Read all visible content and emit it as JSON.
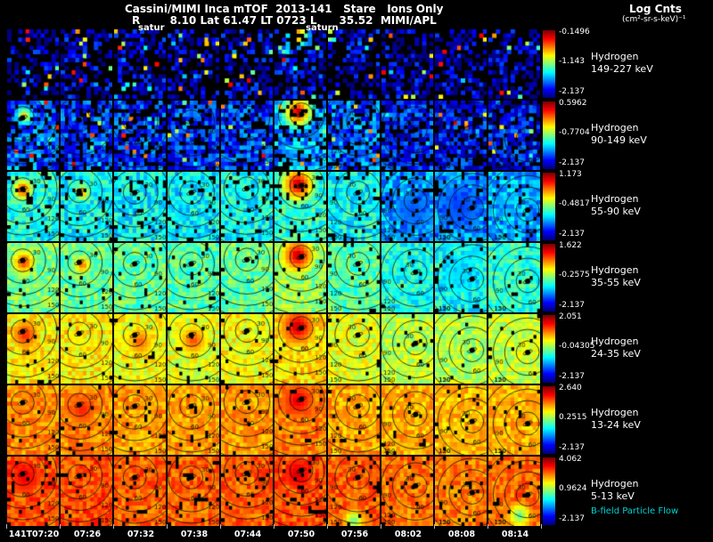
{
  "header": {
    "title": "Cassini/MIMI Inca mTOF  2013-141   Stare   Ions Only",
    "subtitle": "R        8.10 Lat 61.47 LT 0723 L      35.52  MIMI/APL"
  },
  "legend": {
    "title": "Log Cnts",
    "units": "(cm²-sr-s-keV)⁻¹"
  },
  "annotations": {
    "saturn_label_1": "satur",
    "saturn_label_2": "saturn",
    "bfield_label": "B-field Particle Flow"
  },
  "chart_data": {
    "type": "heatmap",
    "colormap": "jet",
    "title": "Cassini/MIMI Inca mTOF 2013-141 Stare Ions Only",
    "x_categories": [
      "141T07:20",
      "07:26",
      "07:32",
      "07:38",
      "07:44",
      "07:50",
      "07:56",
      "08:02",
      "08:08",
      "08:14"
    ],
    "contour_labels_deg": [
      30,
      60,
      90,
      120,
      150
    ],
    "rows": [
      {
        "species": "Hydrogen",
        "energy": "149-227 keV",
        "scale_max": "-0.1496",
        "scale_mid": "-1.143",
        "scale_min": "-2.137",
        "base": [
          0.05,
          0.05,
          0.05,
          0.05,
          0.05,
          0.09,
          0.06,
          0.04,
          0.04,
          0.04
        ],
        "noise": 0.16,
        "mask": 0.55,
        "speck": 0.1,
        "contours": false
      },
      {
        "species": "Hydrogen",
        "energy": "90-149 keV",
        "scale_max": "0.5962",
        "scale_mid": "-0.7704",
        "scale_min": "-2.137",
        "base": [
          0.22,
          0.18,
          0.17,
          0.16,
          0.18,
          0.28,
          0.22,
          0.15,
          0.13,
          0.14
        ],
        "noise": 0.13,
        "mask": 0.3,
        "speck": 0.04,
        "contours": true
      },
      {
        "species": "Hydrogen",
        "energy": "55-90 keV",
        "scale_max": "1.173",
        "scale_mid": "-0.4817",
        "scale_min": "-2.137",
        "base": [
          0.4,
          0.38,
          0.37,
          0.36,
          0.38,
          0.42,
          0.38,
          0.28,
          0.26,
          0.29
        ],
        "noise": 0.1,
        "mask": 0.12,
        "speck": 0,
        "contours": true
      },
      {
        "species": "Hydrogen",
        "energy": "35-55 keV",
        "scale_max": "1.622",
        "scale_mid": "-0.2575",
        "scale_min": "-2.137",
        "base": [
          0.5,
          0.48,
          0.47,
          0.46,
          0.48,
          0.52,
          0.46,
          0.4,
          0.38,
          0.42
        ],
        "noise": 0.09,
        "mask": 0.06,
        "speck": 0,
        "contours": true
      },
      {
        "species": "Hydrogen",
        "energy": "24-35 keV",
        "scale_max": "2.051",
        "scale_mid": "-0.04305",
        "scale_min": "-2.137",
        "base": [
          0.64,
          0.64,
          0.62,
          0.6,
          0.62,
          0.66,
          0.6,
          0.56,
          0.55,
          0.57
        ],
        "noise": 0.08,
        "mask": 0.04,
        "speck": 0,
        "contours": true
      },
      {
        "species": "Hydrogen",
        "energy": "13-24 keV",
        "scale_max": "2.640",
        "scale_mid": "0.2515",
        "scale_min": "-2.137",
        "base": [
          0.74,
          0.74,
          0.72,
          0.72,
          0.72,
          0.75,
          0.71,
          0.7,
          0.69,
          0.7
        ],
        "noise": 0.07,
        "mask": 0.05,
        "speck": 0,
        "contours": true
      },
      {
        "species": "Hydrogen",
        "energy": "5-13 keV",
        "scale_max": "4.062",
        "scale_mid": "0.9624",
        "scale_min": "-2.137",
        "base": [
          0.8,
          0.8,
          0.78,
          0.78,
          0.78,
          0.8,
          0.78,
          0.76,
          0.75,
          0.77
        ],
        "noise": 0.07,
        "mask": 0.09,
        "speck": 0,
        "contours": true
      }
    ],
    "columns": [
      {
        "cx": 0.3,
        "cy": 0.25,
        "side": 1
      },
      {
        "cx": 0.36,
        "cy": 0.28,
        "side": 1
      },
      {
        "cx": 0.4,
        "cy": 0.3,
        "side": 1
      },
      {
        "cx": 0.46,
        "cy": 0.3,
        "side": 1
      },
      {
        "cx": 0.5,
        "cy": 0.24,
        "side": 1
      },
      {
        "cx": 0.52,
        "cy": 0.2,
        "side": 1
      },
      {
        "cx": 0.58,
        "cy": 0.3,
        "side": -1
      },
      {
        "cx": 0.66,
        "cy": 0.42,
        "side": -1
      },
      {
        "cx": 0.72,
        "cy": 0.52,
        "side": -1
      },
      {
        "cx": 0.76,
        "cy": 0.55,
        "side": -1
      }
    ],
    "blobs": [
      {
        "row": 0,
        "col": 5,
        "x": 0.45,
        "y": 0.08,
        "r": 0.3,
        "v": 0.88
      },
      {
        "row": 1,
        "col": 5,
        "x": 0.45,
        "y": 0.16,
        "r": 0.38,
        "v": 0.97
      },
      {
        "row": 1,
        "col": 0,
        "x": 0.33,
        "y": 0.22,
        "r": 0.2,
        "v": 0.72
      },
      {
        "row": 2,
        "col": 5,
        "x": 0.45,
        "y": 0.18,
        "r": 0.4,
        "v": 0.98
      },
      {
        "row": 2,
        "col": 0,
        "x": 0.3,
        "y": 0.26,
        "r": 0.24,
        "v": 0.9
      },
      {
        "row": 2,
        "col": 1,
        "x": 0.42,
        "y": 0.3,
        "r": 0.18,
        "v": 0.78
      },
      {
        "row": 2,
        "col": 7,
        "x": 0.6,
        "y": 0.55,
        "r": 0.35,
        "v": 0.2,
        "cold": true
      },
      {
        "row": 2,
        "col": 8,
        "x": 0.5,
        "y": 0.5,
        "r": 0.4,
        "v": 0.18,
        "cold": true
      },
      {
        "row": 3,
        "col": 5,
        "x": 0.45,
        "y": 0.18,
        "r": 0.38,
        "v": 0.97
      },
      {
        "row": 3,
        "col": 0,
        "x": 0.32,
        "y": 0.28,
        "r": 0.26,
        "v": 0.86
      },
      {
        "row": 3,
        "col": 1,
        "x": 0.42,
        "y": 0.32,
        "r": 0.2,
        "v": 0.8
      },
      {
        "row": 3,
        "col": 8,
        "x": 0.5,
        "y": 0.45,
        "r": 0.35,
        "v": 0.34,
        "cold": true
      },
      {
        "row": 4,
        "col": 5,
        "x": 0.45,
        "y": 0.18,
        "r": 0.36,
        "v": 0.96
      },
      {
        "row": 4,
        "col": 0,
        "x": 0.35,
        "y": 0.3,
        "r": 0.3,
        "v": 0.86
      },
      {
        "row": 4,
        "col": 2,
        "x": 0.5,
        "y": 0.4,
        "r": 0.28,
        "v": 0.8
      },
      {
        "row": 4,
        "col": 3,
        "x": 0.5,
        "y": 0.38,
        "r": 0.3,
        "v": 0.82
      },
      {
        "row": 5,
        "col": 5,
        "x": 0.45,
        "y": 0.22,
        "r": 0.32,
        "v": 0.92
      },
      {
        "row": 5,
        "col": 1,
        "x": 0.42,
        "y": 0.35,
        "r": 0.28,
        "v": 0.86
      },
      {
        "row": 6,
        "col": 5,
        "x": 0.45,
        "y": 0.25,
        "r": 0.3,
        "v": 0.93
      },
      {
        "row": 6,
        "col": 0,
        "x": 0.35,
        "y": 0.3,
        "r": 0.3,
        "v": 0.9
      },
      {
        "row": 6,
        "col": 6,
        "x": 0.5,
        "y": 0.92,
        "r": 0.25,
        "v": 0.45,
        "cold": true
      },
      {
        "row": 6,
        "col": 9,
        "x": 0.6,
        "y": 0.85,
        "r": 0.28,
        "v": 0.45,
        "cold": true
      }
    ]
  }
}
